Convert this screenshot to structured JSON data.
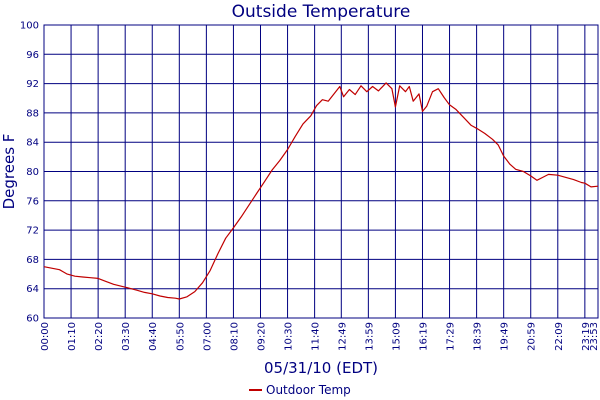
{
  "chart_data": {
    "type": "line",
    "title": "Outside Temperature",
    "xlabel": "05/31/10 (EDT)",
    "ylabel": "Degrees F",
    "ylim": [
      60,
      100
    ],
    "yticks": [
      60,
      64,
      68,
      72,
      76,
      80,
      84,
      88,
      92,
      96,
      100
    ],
    "xlim": [
      "00:00",
      "23:53"
    ],
    "xticks": [
      "00:00",
      "01:10",
      "02:20",
      "03:30",
      "04:40",
      "05:50",
      "07:00",
      "08:10",
      "09:20",
      "10:30",
      "11:40",
      "12:49",
      "13:59",
      "15:09",
      "16:19",
      "17:29",
      "18:39",
      "19:49",
      "20:59",
      "22:09",
      "23:19",
      "23:53"
    ],
    "grid": true,
    "legend_position": "bottom-center",
    "series": [
      {
        "name": "Outdoor Temp",
        "color": "#c00000",
        "points": [
          [
            "00:00",
            67.0
          ],
          [
            "00:20",
            66.8
          ],
          [
            "00:40",
            66.6
          ],
          [
            "00:50",
            66.3
          ],
          [
            "01:00",
            66.0
          ],
          [
            "01:20",
            65.7
          ],
          [
            "01:40",
            65.6
          ],
          [
            "02:00",
            65.5
          ],
          [
            "02:20",
            65.4
          ],
          [
            "02:40",
            65.0
          ],
          [
            "03:00",
            64.6
          ],
          [
            "03:30",
            64.2
          ],
          [
            "04:00",
            63.8
          ],
          [
            "04:20",
            63.5
          ],
          [
            "04:40",
            63.3
          ],
          [
            "05:00",
            63.0
          ],
          [
            "05:20",
            62.8
          ],
          [
            "05:40",
            62.7
          ],
          [
            "05:50",
            62.6
          ],
          [
            "06:10",
            62.9
          ],
          [
            "06:30",
            63.6
          ],
          [
            "06:50",
            64.8
          ],
          [
            "07:10",
            66.5
          ],
          [
            "07:30",
            68.8
          ],
          [
            "07:50",
            70.9
          ],
          [
            "08:10",
            72.3
          ],
          [
            "08:30",
            73.8
          ],
          [
            "08:50",
            75.4
          ],
          [
            "09:10",
            77.0
          ],
          [
            "09:30",
            78.6
          ],
          [
            "09:50",
            80.2
          ],
          [
            "10:10",
            81.5
          ],
          [
            "10:30",
            83.0
          ],
          [
            "10:50",
            84.8
          ],
          [
            "11:10",
            86.5
          ],
          [
            "11:30",
            87.6
          ],
          [
            "11:45",
            89.0
          ],
          [
            "12:00",
            89.8
          ],
          [
            "12:15",
            89.6
          ],
          [
            "12:30",
            90.6
          ],
          [
            "12:45",
            91.6
          ],
          [
            "12:55",
            90.2
          ],
          [
            "13:10",
            91.2
          ],
          [
            "13:25",
            90.5
          ],
          [
            "13:40",
            91.7
          ],
          [
            "13:55",
            90.9
          ],
          [
            "14:10",
            91.6
          ],
          [
            "14:25",
            91.0
          ],
          [
            "14:45",
            92.1
          ],
          [
            "15:00",
            91.3
          ],
          [
            "15:09",
            88.8
          ],
          [
            "15:20",
            91.7
          ],
          [
            "15:35",
            90.9
          ],
          [
            "15:45",
            91.6
          ],
          [
            "15:55",
            89.6
          ],
          [
            "16:10",
            90.6
          ],
          [
            "16:19",
            88.2
          ],
          [
            "16:30",
            88.9
          ],
          [
            "16:45",
            90.9
          ],
          [
            "17:00",
            91.3
          ],
          [
            "17:15",
            90.1
          ],
          [
            "17:29",
            89.1
          ],
          [
            "17:45",
            88.5
          ],
          [
            "18:05",
            87.4
          ],
          [
            "18:25",
            86.3
          ],
          [
            "18:39",
            85.9
          ],
          [
            "19:00",
            85.2
          ],
          [
            "19:20",
            84.4
          ],
          [
            "19:35",
            83.6
          ],
          [
            "19:49",
            82.1
          ],
          [
            "20:05",
            81.0
          ],
          [
            "20:20",
            80.3
          ],
          [
            "20:40",
            80.0
          ],
          [
            "20:59",
            79.4
          ],
          [
            "21:15",
            78.8
          ],
          [
            "21:30",
            79.2
          ],
          [
            "21:45",
            79.6
          ],
          [
            "22:09",
            79.5
          ],
          [
            "22:30",
            79.2
          ],
          [
            "22:50",
            78.9
          ],
          [
            "23:10",
            78.5
          ],
          [
            "23:19",
            78.4
          ],
          [
            "23:35",
            77.9
          ],
          [
            "23:53",
            78.0
          ]
        ]
      }
    ]
  }
}
